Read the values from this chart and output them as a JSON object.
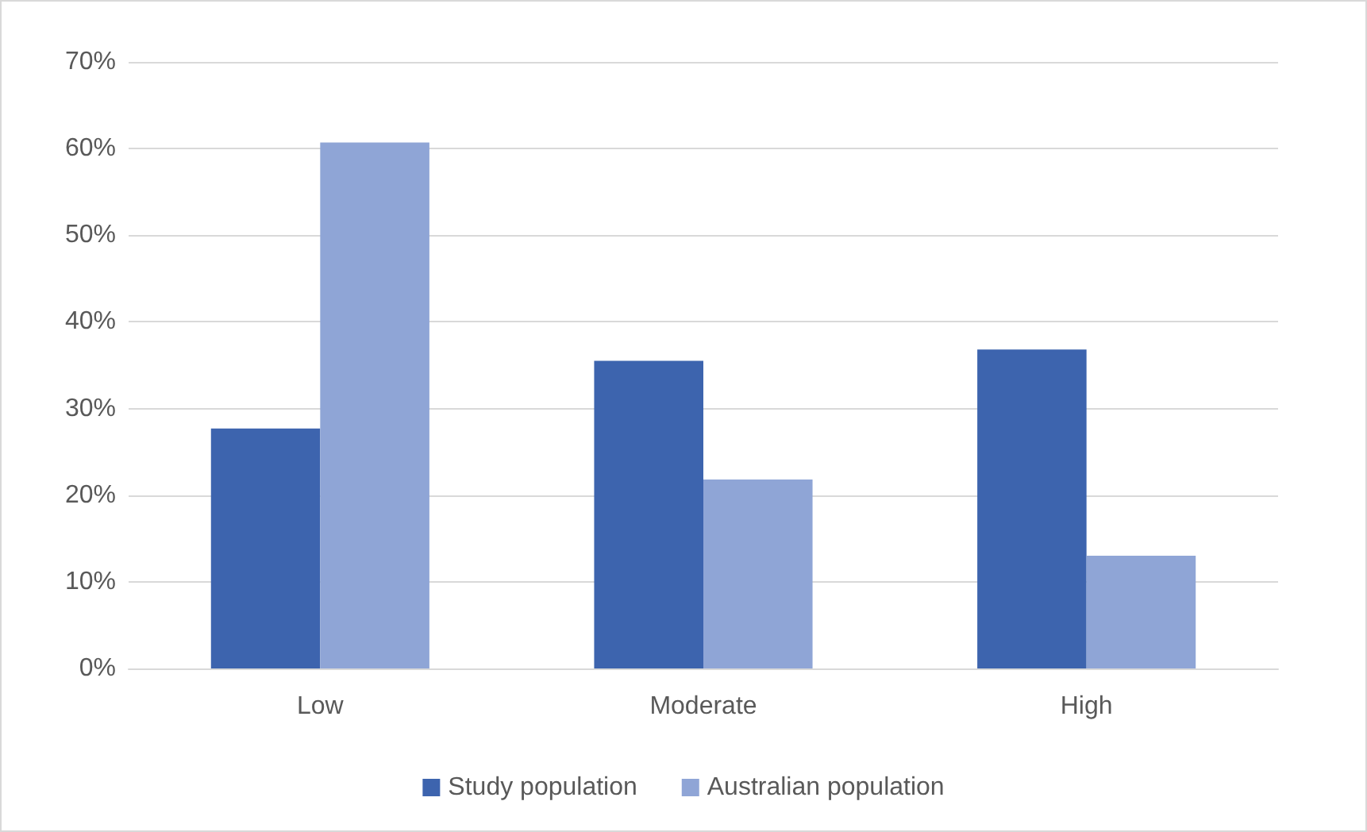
{
  "chart_data": {
    "type": "bar",
    "categories": [
      "Low",
      "Moderate",
      "High"
    ],
    "series": [
      {
        "name": "Study population",
        "color": "#3d64ae",
        "values": [
          27.7,
          35.5,
          36.8
        ]
      },
      {
        "name": "Australian population",
        "color": "#8fa5d6",
        "values": [
          60.7,
          21.8,
          13.0
        ]
      }
    ],
    "ylim": [
      0,
      70
    ],
    "yticks": [
      {
        "value": 0,
        "label": "0%"
      },
      {
        "value": 10,
        "label": "10%"
      },
      {
        "value": 20,
        "label": "20%"
      },
      {
        "value": 30,
        "label": "30%"
      },
      {
        "value": 40,
        "label": "40%"
      },
      {
        "value": 50,
        "label": "50%"
      },
      {
        "value": 60,
        "label": "60%"
      },
      {
        "value": 70,
        "label": "70%"
      }
    ],
    "grid": "y",
    "legend": "bottom"
  }
}
